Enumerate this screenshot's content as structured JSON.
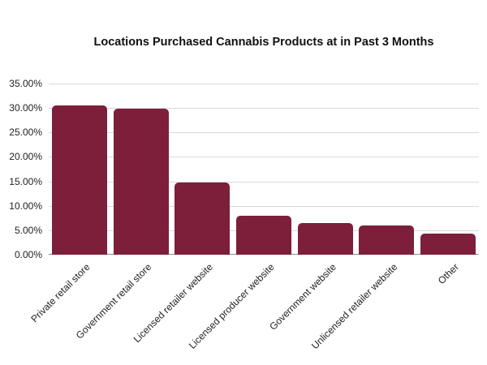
{
  "chart_data": {
    "type": "bar",
    "title": "Locations Purchased Cannabis Products at in Past 3 Months",
    "xlabel": "",
    "ylabel": "",
    "categories": [
      "Private retail store",
      "Government retail store",
      "Licensed retailer website",
      "Licensed producer website",
      "Government website",
      "Unlicensed retailer website",
      "Other"
    ],
    "values": [
      30.5,
      29.9,
      14.7,
      7.9,
      6.5,
      6.0,
      4.3
    ],
    "ylim": [
      0,
      35
    ],
    "yticks": [
      "0.00%",
      "5.00%",
      "10.00%",
      "15.00%",
      "20.00%",
      "25.00%",
      "30.00%",
      "35.00%"
    ],
    "grid": true,
    "legend": "none",
    "bar_color": "#7d1f3a"
  }
}
